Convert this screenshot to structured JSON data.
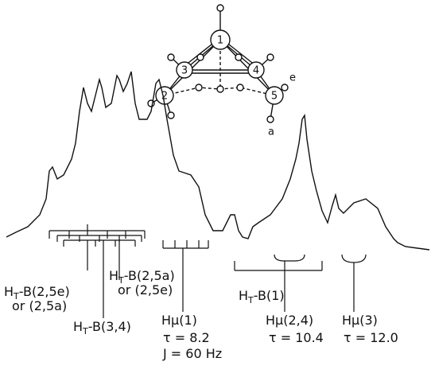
{
  "molecule": {
    "atoms": [
      "1",
      "2",
      "3",
      "4",
      "5"
    ],
    "labels": [
      "e",
      "a"
    ]
  },
  "assignments": [
    {
      "h": "H",
      "sub": "T",
      "rest": "-B(2,5e)",
      "line2": "or (2,5a)"
    },
    {
      "h": "H",
      "sub": "T",
      "rest": "-B(2,5a)",
      "line2": "or (2,5e)"
    },
    {
      "h": "H",
      "sub": "T",
      "rest": "-B(3,4)"
    },
    {
      "label": "Hμ(1)",
      "tau": "τ = 8.2",
      "J": "J = 60 Hz"
    },
    {
      "h": "H",
      "sub": "T",
      "rest": "-B(1)"
    },
    {
      "label": "Hμ(2,4)",
      "tau": "τ = 10.4"
    },
    {
      "label": "Hμ(3)",
      "tau": "τ = 12.0"
    }
  ]
}
